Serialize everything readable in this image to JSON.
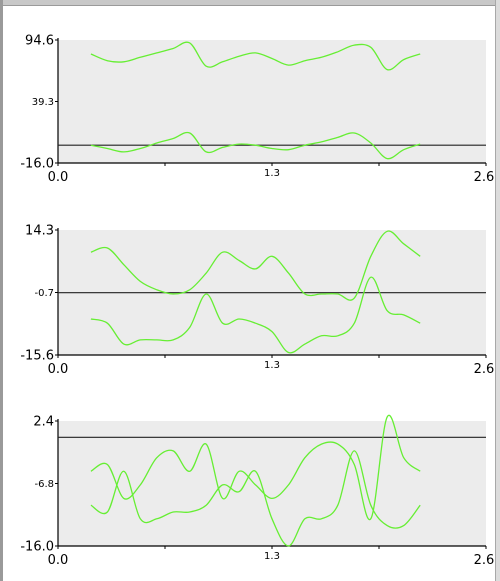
{
  "chart_data": [
    {
      "type": "line",
      "xlim": [
        0.0,
        2.6
      ],
      "ylim": [
        -16.0,
        94.6
      ],
      "x_tick_labels": [
        "0.0",
        "1.3",
        "2.6"
      ],
      "y_tick_labels": [
        "94.6",
        "39.3",
        "-16.0"
      ],
      "reference_line": 0,
      "series": [
        {
          "x": [
            0.2,
            0.3,
            0.4,
            0.5,
            0.6,
            0.7,
            0.8,
            0.9,
            1.0,
            1.1,
            1.2,
            1.3,
            1.4,
            1.5,
            1.6,
            1.7,
            1.8,
            1.9,
            2.0,
            2.1,
            2.2
          ],
          "values": [
            82,
            76,
            75,
            79,
            83,
            87,
            92,
            71,
            75,
            80,
            83,
            78,
            72,
            76,
            79,
            84,
            90,
            88,
            68,
            77,
            82
          ]
        },
        {
          "x": [
            0.2,
            0.3,
            0.4,
            0.5,
            0.6,
            0.7,
            0.8,
            0.9,
            1.0,
            1.1,
            1.2,
            1.3,
            1.4,
            1.5,
            1.6,
            1.7,
            1.8,
            1.9,
            2.0,
            2.1,
            2.2
          ],
          "values": [
            0,
            -3,
            -6,
            -3,
            2,
            6,
            11,
            -6,
            -2,
            1,
            0,
            -3,
            -4,
            0,
            3,
            7,
            11,
            2,
            -12,
            -4,
            1
          ]
        }
      ],
      "grid": false
    },
    {
      "type": "line",
      "xlim": [
        0.0,
        2.6
      ],
      "ylim": [
        -15.6,
        14.3
      ],
      "x_tick_labels": [
        "0.0",
        "1.3",
        "2.6"
      ],
      "y_tick_labels": [
        "14.3",
        "-0.7",
        "-15.6"
      ],
      "reference_line": -0.7,
      "series": [
        {
          "x": [
            0.2,
            0.3,
            0.4,
            0.5,
            0.6,
            0.7,
            0.8,
            0.9,
            1.0,
            1.1,
            1.2,
            1.3,
            1.4,
            1.5,
            1.6,
            1.7,
            1.8,
            1.9,
            2.0,
            2.1,
            2.2
          ],
          "values": [
            9,
            10,
            6,
            2,
            0,
            -1,
            0,
            4,
            9,
            7,
            5,
            8,
            4,
            -1,
            -1,
            -1,
            -2,
            8,
            14,
            11,
            8
          ]
        },
        {
          "x": [
            0.2,
            0.3,
            0.4,
            0.5,
            0.6,
            0.7,
            0.8,
            0.9,
            1.0,
            1.1,
            1.2,
            1.3,
            1.4,
            1.5,
            1.6,
            1.7,
            1.8,
            1.9,
            2.0,
            2.1,
            2.2
          ],
          "values": [
            -7,
            -8,
            -13,
            -12,
            -12,
            -12,
            -9,
            -1,
            -8,
            -7,
            -8,
            -10,
            -15,
            -13,
            -11,
            -11,
            -8,
            3,
            -5,
            -6,
            -8
          ]
        }
      ],
      "grid": false
    },
    {
      "type": "line",
      "xlim": [
        0.0,
        2.6
      ],
      "ylim": [
        -16.0,
        2.4
      ],
      "x_tick_labels": [
        "0.0",
        "1.3",
        "2.6"
      ],
      "y_tick_labels": [
        "2.4",
        "-6.8",
        "-16.0"
      ],
      "reference_line": 0,
      "series": [
        {
          "x": [
            0.2,
            0.3,
            0.4,
            0.5,
            0.6,
            0.7,
            0.8,
            0.9,
            1.0,
            1.1,
            1.2,
            1.3,
            1.4,
            1.5,
            1.6,
            1.7,
            1.8,
            1.9,
            2.0,
            2.1,
            2.2
          ],
          "values": [
            -5,
            -4,
            -9,
            -7,
            -3,
            -2,
            -5,
            -1,
            -9,
            -5,
            -7,
            -9,
            -7,
            -3,
            -1,
            -1,
            -4,
            -12,
            3,
            -3,
            -5
          ]
        },
        {
          "x": [
            0.2,
            0.3,
            0.4,
            0.5,
            0.6,
            0.7,
            0.8,
            0.9,
            1.0,
            1.1,
            1.2,
            1.3,
            1.4,
            1.5,
            1.6,
            1.7,
            1.8,
            1.9,
            2.0,
            2.1,
            2.2
          ],
          "values": [
            -10,
            -11,
            -5,
            -12,
            -12,
            -11,
            -11,
            -10,
            -7,
            -8,
            -5,
            -12,
            -16,
            -12,
            -12,
            -10,
            -2,
            -10,
            -13,
            -13,
            -10
          ]
        }
      ],
      "grid": false
    }
  ],
  "style": {
    "series_color": "#66ee33",
    "reference_color": "#222222",
    "plot_background": "#ececec",
    "axis_color": "#000000"
  }
}
